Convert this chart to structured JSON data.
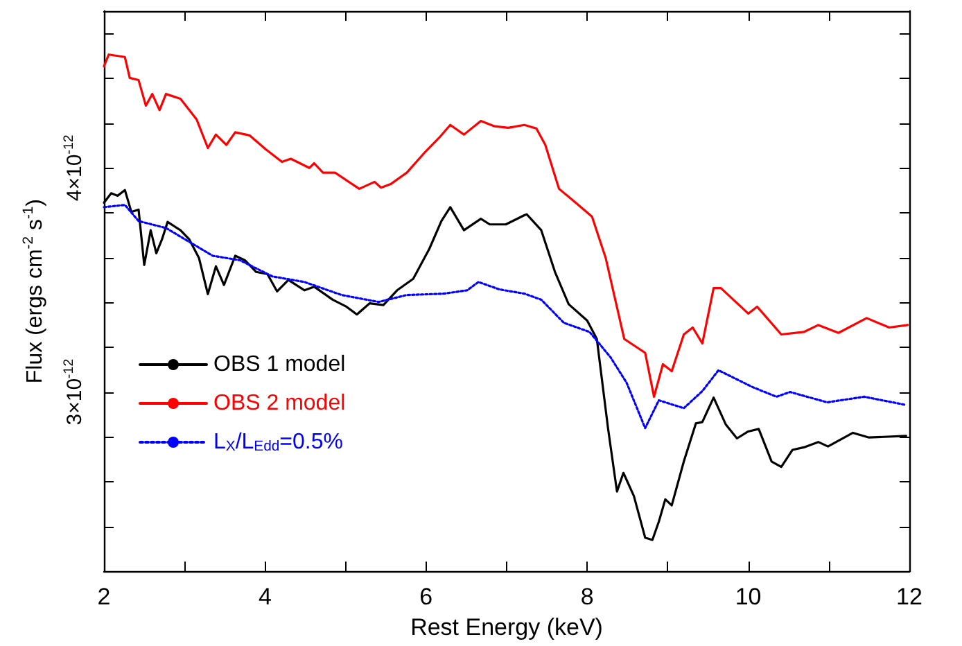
{
  "chart_data": {
    "type": "line",
    "xlabel": "Rest Energy (keV)",
    "ylabel": "Flux (ergs cm$^{-2}$ s$^{-1}$)",
    "xlim": [
      2,
      12
    ],
    "xticks": [
      2,
      {
        "value": 3,
        "label": null
      },
      4,
      {
        "value": 5,
        "label": null
      },
      6,
      {
        "value": 7,
        "label": null
      },
      8,
      {
        "value": 9,
        "label": null
      },
      10,
      {
        "value": 11,
        "label": null
      },
      12
    ],
    "ylim": [
      2.2e-12,
      4.7e-12
    ],
    "yticks": [
      {
        "value": 2.2e-12,
        "label": null
      },
      {
        "value": 2.4e-12,
        "label": null
      },
      {
        "value": 2.6e-12,
        "label": null
      },
      {
        "value": 2.8e-12,
        "label": null
      },
      {
        "value": 3e-12,
        "label": "3×10$^{-12}$"
      },
      {
        "value": 3.2e-12,
        "label": null
      },
      {
        "value": 3.4e-12,
        "label": null
      },
      {
        "value": 3.6e-12,
        "label": null
      },
      {
        "value": 3.8e-12,
        "label": null
      },
      {
        "value": 4e-12,
        "label": "4×10$^{-12}$"
      },
      {
        "value": 4.2e-12,
        "label": null
      },
      {
        "value": 4.4e-12,
        "label": null
      },
      {
        "value": 4.6e-12,
        "label": null
      }
    ],
    "grid": false,
    "legend": "left",
    "marker": "none",
    "series": [
      {
        "name": "OBS 1 model",
        "color": "#000000",
        "line_style": "solid",
        "x": [
          2.0,
          2.09,
          2.17,
          2.26,
          2.34,
          2.43,
          2.5,
          2.58,
          2.65,
          2.72,
          2.79,
          2.95,
          3.06,
          3.18,
          3.29,
          3.39,
          3.49,
          3.63,
          3.75,
          3.89,
          4.03,
          4.15,
          4.29,
          4.49,
          4.61,
          4.84,
          5.01,
          5.14,
          5.3,
          5.47,
          5.64,
          5.84,
          6.04,
          6.19,
          6.3,
          6.47,
          6.68,
          6.79,
          6.99,
          7.22,
          7.25,
          7.43,
          7.6,
          7.77,
          8.0,
          8.12,
          8.26,
          8.37,
          8.45,
          8.58,
          8.72,
          8.81,
          8.89,
          8.97,
          9.05,
          9.2,
          9.35,
          9.43,
          9.57,
          9.72,
          9.86,
          10.0,
          10.13,
          10.29,
          10.41,
          10.55,
          10.69,
          10.87,
          10.99,
          11.3,
          11.5,
          11.96
        ],
        "values": [
          3.845e-12,
          3.887e-12,
          3.876e-12,
          3.901e-12,
          3.804e-12,
          3.814e-12,
          3.567e-12,
          3.722e-12,
          3.619e-12,
          3.681e-12,
          3.759e-12,
          3.722e-12,
          3.681e-12,
          3.598e-12,
          3.437e-12,
          3.561e-12,
          3.478e-12,
          3.608e-12,
          3.588e-12,
          3.536e-12,
          3.526e-12,
          3.449e-12,
          3.5e-12,
          3.454e-12,
          3.47e-12,
          3.412e-12,
          3.381e-12,
          3.346e-12,
          3.396e-12,
          3.388e-12,
          3.454e-12,
          3.505e-12,
          3.639e-12,
          3.763e-12,
          3.825e-12,
          3.722e-12,
          3.773e-12,
          3.748e-12,
          3.748e-12,
          3.789e-12,
          3.793e-12,
          3.722e-12,
          3.536e-12,
          3.392e-12,
          3.319e-12,
          3.237e-12,
          2.835e-12,
          2.556e-12,
          2.639e-12,
          2.536e-12,
          2.35e-12,
          2.34e-12,
          2.422e-12,
          2.521e-12,
          2.494e-12,
          2.69e-12,
          2.86e-12,
          2.866e-12,
          2.975e-12,
          2.856e-12,
          2.793e-12,
          2.824e-12,
          2.835e-12,
          2.69e-12,
          2.666e-12,
          2.742e-12,
          2.753e-12,
          2.777e-12,
          2.757e-12,
          2.818e-12,
          2.797e-12,
          2.804e-12
        ]
      },
      {
        "name": "OBS 2 model",
        "color": "#ff0000",
        "line_style": "solid",
        "x": [
          2.0,
          2.06,
          2.26,
          2.32,
          2.43,
          2.52,
          2.6,
          2.69,
          2.77,
          2.95,
          3.15,
          3.29,
          3.39,
          3.52,
          3.63,
          3.81,
          4.01,
          4.21,
          4.32,
          4.55,
          4.61,
          4.72,
          4.87,
          5.04,
          5.17,
          5.36,
          5.44,
          5.56,
          5.76,
          5.99,
          6.16,
          6.3,
          6.47,
          6.68,
          6.85,
          7.02,
          7.22,
          7.37,
          7.48,
          7.65,
          7.82,
          8.06,
          8.23,
          8.46,
          8.72,
          8.83,
          8.94,
          9.05,
          9.2,
          9.31,
          9.43,
          9.57,
          9.66,
          10.0,
          10.11,
          10.41,
          10.69,
          10.87,
          11.12,
          11.47,
          11.75,
          11.98
        ],
        "values": [
          4.454e-12,
          4.506e-12,
          4.495e-12,
          4.402e-12,
          4.392e-12,
          4.278e-12,
          4.33e-12,
          4.258e-12,
          4.33e-12,
          4.309e-12,
          4.217e-12,
          4.089e-12,
          4.149e-12,
          4.103e-12,
          4.159e-12,
          4.145e-12,
          4.083e-12,
          4.027e-12,
          4.041e-12,
          4e-12,
          4.021e-12,
          3.979e-12,
          3.979e-12,
          3.938e-12,
          3.907e-12,
          3.938e-12,
          3.912e-12,
          3.928e-12,
          3.979e-12,
          4.072e-12,
          4.134e-12,
          4.192e-12,
          4.149e-12,
          4.21e-12,
          4.186e-12,
          4.179e-12,
          4.192e-12,
          4.176e-12,
          4.103e-12,
          3.907e-12,
          3.856e-12,
          3.783e-12,
          3.598e-12,
          3.237e-12,
          3.175e-12,
          2.979e-12,
          3.124e-12,
          3.093e-12,
          3.257e-12,
          3.288e-12,
          3.217e-12,
          3.464e-12,
          3.464e-12,
          3.35e-12,
          3.381e-12,
          3.257e-12,
          3.268e-12,
          3.299e-12,
          3.264e-12,
          3.33e-12,
          3.288e-12,
          3.299e-12
        ]
      },
      {
        "name": "L$_{X}$/L$_{Edd}$=0.5%",
        "color": "#0000ff",
        "line_style": "dotted",
        "x": [
          2.0,
          2.26,
          2.43,
          2.77,
          3.06,
          3.35,
          3.69,
          4.09,
          4.49,
          4.95,
          5.41,
          5.76,
          6.22,
          6.51,
          6.65,
          6.91,
          7.22,
          7.43,
          7.71,
          8.03,
          8.29,
          8.49,
          8.72,
          8.89,
          9.2,
          9.43,
          9.63,
          10.06,
          10.35,
          10.52,
          10.98,
          11.44,
          11.96
        ],
        "values": [
          3.825e-12,
          3.835e-12,
          3.763e-12,
          3.732e-12,
          3.67e-12,
          3.608e-12,
          3.588e-12,
          3.516e-12,
          3.491e-12,
          3.433e-12,
          3.402e-12,
          3.433e-12,
          3.439e-12,
          3.454e-12,
          3.491e-12,
          3.458e-12,
          3.439e-12,
          3.412e-12,
          3.309e-12,
          3.268e-12,
          3.155e-12,
          3.041e-12,
          2.839e-12,
          2.963e-12,
          2.928e-12,
          3.004e-12,
          3.097e-12,
          3.021e-12,
          2.979e-12,
          3e-12,
          2.954e-12,
          2.979e-12,
          2.942e-12
        ]
      }
    ]
  }
}
